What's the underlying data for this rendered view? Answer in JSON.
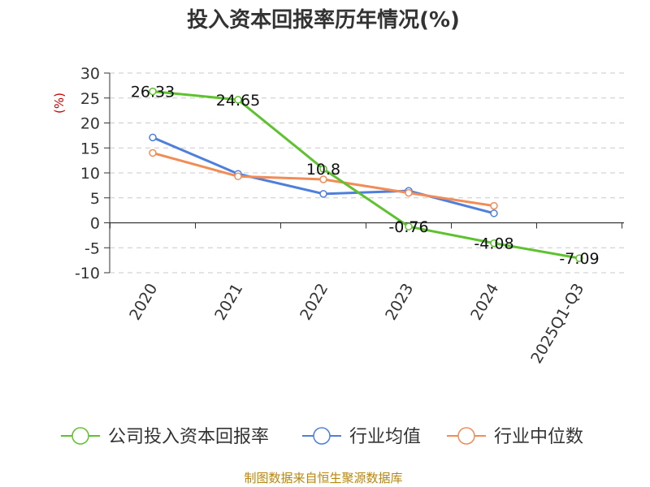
{
  "chart_data": {
    "type": "line",
    "title": "投入资本回报率历年情况(%)",
    "ylabel": "(%)",
    "xlabel": "",
    "ylim": [
      -10,
      30
    ],
    "yticks": [
      30,
      25,
      20,
      15,
      10,
      5,
      0,
      -5,
      -10
    ],
    "grid": true,
    "categories": [
      "2020",
      "2021",
      "2022",
      "2023",
      "2024",
      "2025Q1-Q3"
    ],
    "series": [
      {
        "name": "公司投入资本回报率",
        "color": "#5ec22e",
        "values": [
          26.33,
          24.65,
          10.8,
          -0.76,
          -4.08,
          -7.09
        ],
        "labels": [
          "26.33",
          "24.65",
          "10.8",
          "-0.76",
          "-4.08",
          "-7.09"
        ]
      },
      {
        "name": "行业均值",
        "color": "#4e7fdc",
        "values": [
          17.1,
          9.8,
          5.8,
          6.4,
          1.9,
          null
        ]
      },
      {
        "name": "行业中位数",
        "color": "#f28c56",
        "values": [
          14.0,
          9.3,
          8.7,
          6.0,
          3.4,
          null
        ]
      }
    ],
    "legend_position": "bottom",
    "source": "制图数据来自恒生聚源数据库"
  }
}
